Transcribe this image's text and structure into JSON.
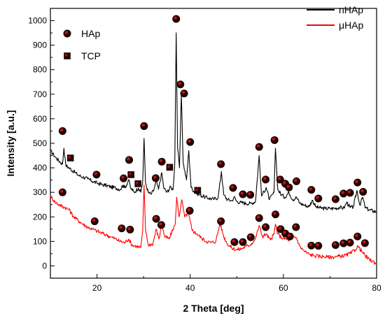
{
  "chart_data": {
    "type": "line",
    "xlabel": "2 Theta [deg]",
    "ylabel": "Intensity [a.u.]",
    "xlim": [
      10,
      80
    ],
    "ylim": [
      -50,
      1050
    ],
    "x_ticks": [
      20,
      40,
      60,
      80
    ],
    "y_ticks": [
      0,
      100,
      200,
      300,
      400,
      500,
      600,
      700,
      800,
      900,
      1000
    ],
    "grid": false,
    "legend_position": "top-right",
    "series": [
      {
        "name": "nHAp",
        "color": "#000000",
        "points": [
          [
            10,
            470
          ],
          [
            11,
            445
          ],
          [
            12,
            425
          ],
          [
            12.6,
            415
          ],
          [
            12.9,
            480
          ],
          [
            13.3,
            410
          ],
          [
            14,
            400
          ],
          [
            15,
            385
          ],
          [
            16,
            370
          ],
          [
            17,
            362
          ],
          [
            18,
            355
          ],
          [
            19,
            345
          ],
          [
            20,
            338
          ],
          [
            21,
            332
          ],
          [
            22,
            328
          ],
          [
            23,
            322
          ],
          [
            24,
            318
          ],
          [
            25,
            312
          ],
          [
            25.6,
            330
          ],
          [
            26,
            318
          ],
          [
            26.8,
            352
          ],
          [
            27.2,
            318
          ],
          [
            28,
            300
          ],
          [
            28.9,
            318
          ],
          [
            29.4,
            300
          ],
          [
            29.8,
            340
          ],
          [
            30.1,
            520
          ],
          [
            30.4,
            340
          ],
          [
            31,
            300
          ],
          [
            31.6,
            292
          ],
          [
            32.2,
            310
          ],
          [
            32.7,
            345
          ],
          [
            33.2,
            312
          ],
          [
            33.9,
            380
          ],
          [
            34.3,
            320
          ],
          [
            35,
            300
          ],
          [
            35.8,
            322
          ],
          [
            36.3,
            310
          ],
          [
            36.7,
            420
          ],
          [
            37.0,
            950
          ],
          [
            37.3,
            480
          ],
          [
            37.7,
            400
          ],
          [
            38.1,
            700
          ],
          [
            38.5,
            420
          ],
          [
            39.2,
            350
          ],
          [
            39.7,
            470
          ],
          [
            40.2,
            320
          ],
          [
            41,
            300
          ],
          [
            42,
            290
          ],
          [
            43,
            282
          ],
          [
            44,
            276
          ],
          [
            45,
            272
          ],
          [
            46,
            280
          ],
          [
            46.7,
            385
          ],
          [
            47.2,
            290
          ],
          [
            48,
            270
          ],
          [
            49,
            266
          ],
          [
            49.4,
            282
          ],
          [
            50,
            262
          ],
          [
            51,
            258
          ],
          [
            52,
            255
          ],
          [
            53,
            255
          ],
          [
            54,
            262
          ],
          [
            54.8,
            450
          ],
          [
            55.3,
            285
          ],
          [
            56.3,
            320
          ],
          [
            57,
            270
          ],
          [
            58,
            300
          ],
          [
            58.3,
            480
          ],
          [
            58.8,
            310
          ],
          [
            59.6,
            290
          ],
          [
            60.3,
            280
          ],
          [
            61.2,
            300
          ],
          [
            62,
            270
          ],
          [
            62.8,
            280
          ],
          [
            63.5,
            256
          ],
          [
            64.5,
            248
          ],
          [
            65.5,
            242
          ],
          [
            66.2,
            268
          ],
          [
            67,
            240
          ],
          [
            68,
            236
          ],
          [
            69,
            234
          ],
          [
            70,
            234
          ],
          [
            71,
            235
          ],
          [
            72,
            238
          ],
          [
            73,
            236
          ],
          [
            73.6,
            260
          ],
          [
            74.3,
            238
          ],
          [
            75,
            240
          ],
          [
            75.8,
            308
          ],
          [
            76.4,
            248
          ],
          [
            77,
            280
          ],
          [
            77.6,
            236
          ],
          [
            78.5,
            228
          ],
          [
            80,
            220
          ]
        ]
      },
      {
        "name": "μHAp",
        "color": "#ff0000",
        "points": [
          [
            10,
            285
          ],
          [
            11,
            260
          ],
          [
            12,
            248
          ],
          [
            12.9,
            240
          ],
          [
            14,
            230
          ],
          [
            15,
            200
          ],
          [
            16,
            185
          ],
          [
            17,
            170
          ],
          [
            18,
            158
          ],
          [
            19,
            150
          ],
          [
            20,
            142
          ],
          [
            21,
            134
          ],
          [
            22,
            126
          ],
          [
            23,
            118
          ],
          [
            24,
            110
          ],
          [
            25,
            100
          ],
          [
            26,
            95
          ],
          [
            26.8,
            110
          ],
          [
            27.5,
            85
          ],
          [
            28.5,
            80
          ],
          [
            29.4,
            75
          ],
          [
            29.8,
            140
          ],
          [
            30.1,
            330
          ],
          [
            30.4,
            150
          ],
          [
            31,
            85
          ],
          [
            32,
            90
          ],
          [
            32.7,
            150
          ],
          [
            33.3,
            110
          ],
          [
            33.9,
            170
          ],
          [
            34.5,
            120
          ],
          [
            35.5,
            110
          ],
          [
            36.3,
            150
          ],
          [
            36.8,
            170
          ],
          [
            37.1,
            280
          ],
          [
            37.6,
            200
          ],
          [
            38.2,
            270
          ],
          [
            38.8,
            200
          ],
          [
            39.6,
            215
          ],
          [
            40.4,
            145
          ],
          [
            41.5,
            130
          ],
          [
            42.5,
            112
          ],
          [
            43.5,
            100
          ],
          [
            44.5,
            95
          ],
          [
            45.5,
            100
          ],
          [
            46.4,
            175
          ],
          [
            47.2,
            120
          ],
          [
            48,
            90
          ],
          [
            49,
            72
          ],
          [
            50,
            66
          ],
          [
            51,
            70
          ],
          [
            52,
            80
          ],
          [
            53,
            88
          ],
          [
            54,
            110
          ],
          [
            54.8,
            165
          ],
          [
            55.5,
            120
          ],
          [
            56.3,
            130
          ],
          [
            57.2,
            105
          ],
          [
            58,
            130
          ],
          [
            58.3,
            170
          ],
          [
            58.8,
            130
          ],
          [
            59.6,
            115
          ],
          [
            60.5,
            110
          ],
          [
            61.3,
            105
          ],
          [
            62.1,
            120
          ],
          [
            62.8,
            115
          ],
          [
            63.5,
            80
          ],
          [
            64.5,
            60
          ],
          [
            65.5,
            48
          ],
          [
            66.5,
            42
          ],
          [
            67.5,
            40
          ],
          [
            68.5,
            38
          ],
          [
            69.5,
            36
          ],
          [
            70.5,
            36
          ],
          [
            71.5,
            38
          ],
          [
            72.5,
            40
          ],
          [
            73.5,
            44
          ],
          [
            74.5,
            52
          ],
          [
            75.4,
            66
          ],
          [
            76,
            80
          ],
          [
            76.8,
            60
          ],
          [
            77.6,
            40
          ],
          [
            78.5,
            25
          ],
          [
            80,
            10
          ]
        ]
      }
    ],
    "marker_legend": [
      {
        "label": "HAp",
        "shape": "circle"
      },
      {
        "label": "TCP",
        "shape": "square"
      }
    ],
    "annotations": {
      "hap_markers_nHAp": [
        [
          12.6,
          550
        ],
        [
          19.9,
          372
        ],
        [
          25.7,
          357
        ],
        [
          26.9,
          432
        ],
        [
          30.1,
          570
        ],
        [
          32.6,
          358
        ],
        [
          33.9,
          425
        ],
        [
          37.0,
          1007
        ],
        [
          37.9,
          740
        ],
        [
          38.7,
          703
        ],
        [
          40.0,
          505
        ],
        [
          46.6,
          415
        ],
        [
          49.2,
          318
        ],
        [
          51.3,
          292
        ],
        [
          52.9,
          290
        ],
        [
          54.8,
          485
        ],
        [
          56.2,
          352
        ],
        [
          58.1,
          513
        ],
        [
          59.3,
          352
        ],
        [
          60.4,
          335
        ],
        [
          61.2,
          320
        ],
        [
          62.8,
          345
        ],
        [
          66.0,
          310
        ],
        [
          67.5,
          275
        ],
        [
          71.2,
          272
        ],
        [
          72.9,
          295
        ],
        [
          74.3,
          298
        ],
        [
          75.9,
          340
        ],
        [
          77.1,
          302
        ]
      ],
      "tcp_markers_nHAp": [
        [
          14.3,
          440
        ],
        [
          27.3,
          372
        ],
        [
          28.8,
          335
        ],
        [
          35.6,
          402
        ],
        [
          41.6,
          308
        ]
      ],
      "hap_markers_muHAp": [
        [
          12.6,
          300
        ],
        [
          19.5,
          182
        ],
        [
          25.3,
          153
        ],
        [
          27.1,
          148
        ],
        [
          32.7,
          192
        ],
        [
          33.8,
          167
        ],
        [
          39.9,
          225
        ],
        [
          46.6,
          182
        ],
        [
          49.5,
          97
        ],
        [
          51.3,
          97
        ],
        [
          53.0,
          117
        ],
        [
          54.8,
          195
        ],
        [
          56.2,
          158
        ],
        [
          58.3,
          210
        ],
        [
          59.4,
          150
        ],
        [
          60.4,
          132
        ],
        [
          61.4,
          120
        ],
        [
          62.7,
          158
        ],
        [
          66.0,
          83
        ],
        [
          67.5,
          82
        ],
        [
          71.2,
          85
        ],
        [
          72.9,
          92
        ],
        [
          74.3,
          95
        ],
        [
          75.9,
          120
        ],
        [
          77.5,
          93
        ]
      ]
    }
  }
}
